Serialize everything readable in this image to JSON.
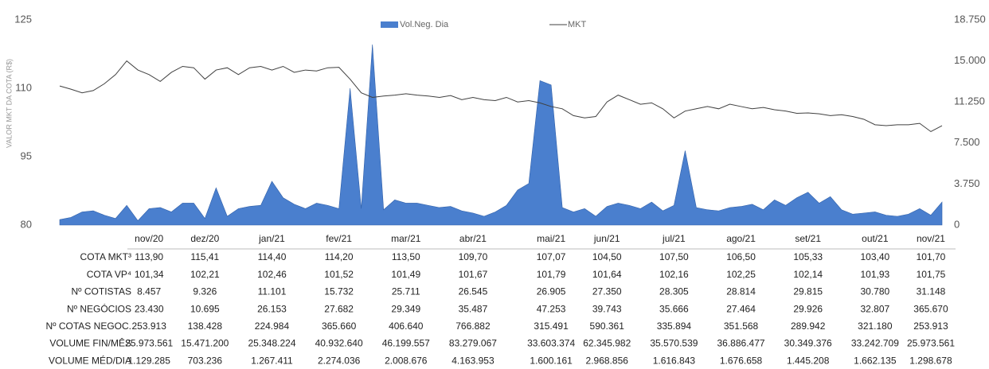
{
  "chart_data": {
    "type": "area-line",
    "y_label": "VALOR MKT DA COTA (R$)",
    "categories": [
      null,
      null,
      null,
      null,
      null,
      null,
      null,
      null,
      "nov/20",
      null,
      null,
      null,
      null,
      "dez/20",
      null,
      null,
      null,
      null,
      null,
      "jan/21",
      null,
      null,
      null,
      null,
      null,
      "fev/21",
      null,
      null,
      null,
      null,
      null,
      "mar/21",
      null,
      null,
      null,
      null,
      null,
      "abr/21",
      null,
      null,
      null,
      null,
      null,
      null,
      "mai/21",
      null,
      null,
      null,
      null,
      "jun/21",
      null,
      null,
      null,
      null,
      null,
      "jul/21",
      null,
      null,
      null,
      null,
      null,
      "ago/21",
      null,
      null,
      null,
      null,
      null,
      "set/21",
      null,
      null,
      null,
      null,
      null,
      "out/21",
      null,
      null,
      null,
      null,
      "nov/21",
      null
    ],
    "series": [
      {
        "name": "Vol.Neg. Dia",
        "color": "#4a7fce",
        "axis": "y2",
        "values": [
          500,
          700,
          1200,
          1300,
          900,
          600,
          1800,
          400,
          1500,
          1600,
          1200,
          2000,
          2000,
          600,
          3400,
          800,
          1500,
          1700,
          1800,
          4000,
          2500,
          1900,
          1500,
          2000,
          1800,
          1500,
          12500,
          1500,
          16500,
          1400,
          2300,
          2000,
          2000,
          1800,
          1600,
          1700,
          1300,
          1100,
          800,
          1200,
          1800,
          3200,
          3800,
          13200,
          12800,
          1600,
          1200,
          1500,
          800,
          1700,
          2000,
          1800,
          1500,
          2100,
          1300,
          1800,
          6800,
          1600,
          1400,
          1300,
          1600,
          1700,
          1900,
          1400,
          2300,
          1800,
          2500,
          3000,
          2000,
          2600,
          1400,
          1000,
          1100,
          1200,
          900,
          800,
          1000,
          1500,
          900,
          2100
        ]
      },
      {
        "name": "MKT",
        "color": "#404040",
        "values": [
          110.5,
          109.8,
          109,
          109.5,
          111,
          113,
          116,
          114,
          113,
          111.5,
          113.5,
          114.8,
          114.5,
          112,
          114,
          114.5,
          113,
          114.5,
          114.8,
          114,
          114.8,
          113.5,
          114,
          113.8,
          114.5,
          114.6,
          112,
          109,
          108,
          108.3,
          108.5,
          108.8,
          108.5,
          108.3,
          108,
          108.4,
          107.5,
          108,
          107.5,
          107.3,
          108,
          107,
          107.3,
          106.8,
          106,
          105.5,
          104,
          103.5,
          103.8,
          107,
          108.5,
          107.5,
          106.5,
          106.8,
          105.5,
          103.5,
          105,
          105.5,
          106,
          105.5,
          106.5,
          106,
          105.5,
          105.8,
          105.3,
          105,
          104.5,
          104.6,
          104.4,
          104,
          104.2,
          103.8,
          103.2,
          102,
          101.8,
          102,
          102,
          102.3,
          100.5,
          101.8
        ]
      }
    ],
    "ylim": [
      80,
      125
    ],
    "yticks": [
      80,
      95,
      110,
      125
    ],
    "y2lim": [
      0,
      18750
    ],
    "y2ticks": [
      0,
      {
        "value": 3750,
        "label": "3.750"
      },
      {
        "value": 7500,
        "label": "7.500"
      },
      {
        "value": 11250,
        "label": "11.250"
      },
      {
        "value": 15000,
        "label": "15.000"
      },
      {
        "value": 18750,
        "label": "18.750"
      }
    ]
  },
  "table": {
    "rows": [
      {
        "label": "COTA MKT³",
        "values": [
          "113,90",
          "115,41",
          "114,40",
          "114,20",
          "113,50",
          "109,70",
          "107,07",
          "104,50",
          "107,50",
          "106,50",
          "105,33",
          "103,40",
          "101,70"
        ]
      },
      {
        "label": "COTA VP⁴",
        "values": [
          "101,34",
          "102,21",
          "102,46",
          "101,52",
          "101,49",
          "101,67",
          "101,79",
          "101,64",
          "102,16",
          "102,25",
          "102,14",
          "101,93",
          "101,75"
        ]
      },
      {
        "label": "Nº COTISTAS",
        "values": [
          "8.457",
          "9.326",
          "11.101",
          "15.732",
          "25.711",
          "26.545",
          "26.905",
          "27.350",
          "28.305",
          "28.814",
          "29.815",
          "30.780",
          "31.148"
        ]
      },
      {
        "label": "Nº NEGÓCIOS",
        "values": [
          "23.430",
          "10.695",
          "26.153",
          "27.682",
          "29.349",
          "35.487",
          "47.253",
          "39.743",
          "35.666",
          "27.464",
          "29.926",
          "32.807",
          "365.670"
        ]
      },
      {
        "label": "Nº COTAS NEGOC.",
        "values": [
          "253.913",
          "138.428",
          "224.984",
          "365.660",
          "406.640",
          "766.882",
          "315.491",
          "590.361",
          "335.894",
          "351.568",
          "289.942",
          "321.180",
          "253.913"
        ]
      },
      {
        "label": "VOLUME FIN/MÊS",
        "values": [
          "25.973.561",
          "15.471.200",
          "25.348.224",
          "40.932.640",
          "46.199.557",
          "83.279.067",
          "33.603.374",
          "62.345.982",
          "35.570.539",
          "36.886.477",
          "30.349.376",
          "33.242.709",
          "25.973.561"
        ]
      },
      {
        "label": "VOLUME MÉD/DIA",
        "values": [
          "1.129.285",
          "703.236",
          "1.267.411",
          "2.274.036",
          "2.008.676",
          "4.163.953",
          "1.600.161",
          "2.968.856",
          "1.616.843",
          "1.676.658",
          "1.445.208",
          "1.662.135",
          "1.298.678"
        ]
      }
    ]
  }
}
